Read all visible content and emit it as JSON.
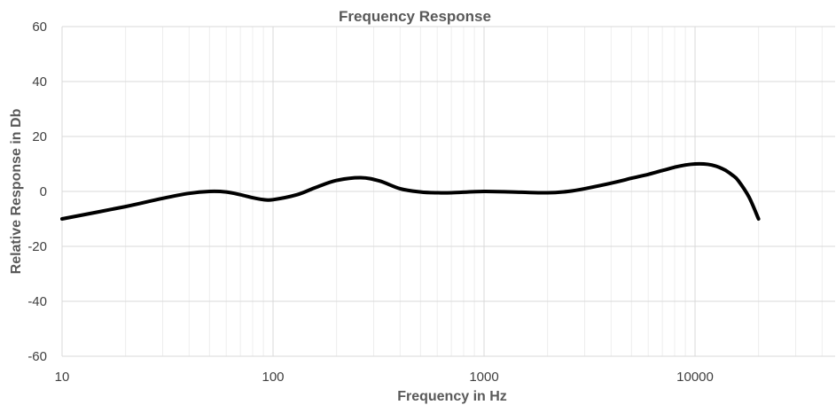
{
  "chart_data": {
    "type": "line",
    "title": "Frequency Response",
    "xlabel": "Frequency in Hz",
    "ylabel": "Relative Response in Db",
    "x_scale": "log",
    "xlim": [
      10,
      50000
    ],
    "ylim": [
      -60,
      60
    ],
    "x_ticks": [
      "10",
      "100",
      "1000",
      "10000"
    ],
    "y_ticks": [
      "60",
      "40",
      "20",
      "0",
      "-20",
      "-40",
      "-60"
    ],
    "grid": true,
    "legend": "none",
    "line_color": "#000000",
    "series": [
      {
        "x": [
          10,
          20,
          30,
          40,
          50,
          60,
          70,
          80,
          90,
          100,
          130,
          160,
          200,
          260,
          320,
          400,
          500,
          600,
          700,
          1000,
          1500,
          2000,
          2500,
          3000,
          4000,
          5000,
          6000,
          7000,
          8000,
          9000,
          10000,
          11000,
          12000,
          13000,
          14000,
          15000,
          16000,
          18000,
          20000
        ],
        "y": [
          -10,
          -5.5,
          -2.5,
          -0.7,
          0,
          -0.2,
          -1.2,
          -2.3,
          -3,
          -3,
          -1.2,
          1.5,
          4,
          5,
          3.8,
          1,
          -0.2,
          -0.5,
          -0.5,
          0,
          -0.3,
          -0.5,
          0,
          1,
          3,
          4.8,
          6.2,
          7.6,
          8.8,
          9.6,
          10,
          10,
          9.6,
          8.8,
          7.6,
          6,
          4,
          -2,
          -10
        ]
      }
    ]
  }
}
